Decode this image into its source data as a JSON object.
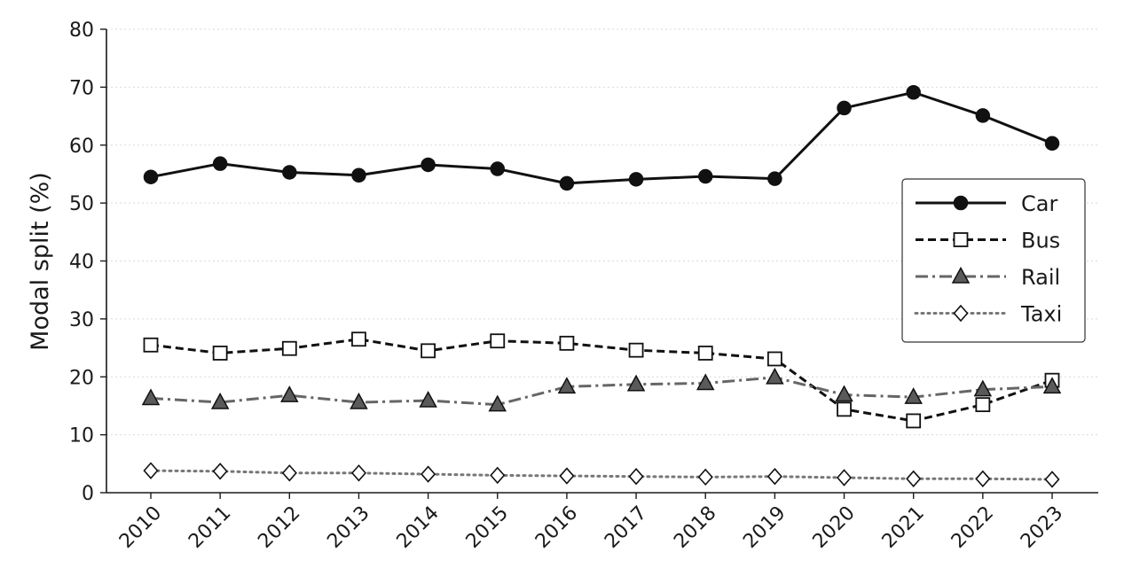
{
  "chart_data": {
    "type": "line",
    "title": "",
    "xlabel": "",
    "ylabel": "Modal split (%)",
    "x": [
      "2010",
      "2011",
      "2012",
      "2013",
      "2014",
      "2015",
      "2016",
      "2017",
      "2018",
      "2019",
      "2020",
      "2021",
      "2022",
      "2023"
    ],
    "ylim": [
      0,
      80
    ],
    "yticks": [
      0,
      10,
      20,
      30,
      40,
      50,
      60,
      70,
      80
    ],
    "grid": "horizontal dotted",
    "legend_position": "right",
    "series": [
      {
        "name": "Car",
        "values": [
          54.5,
          56.8,
          55.3,
          54.8,
          56.6,
          55.9,
          53.4,
          54.1,
          54.6,
          54.2,
          66.4,
          69.1,
          65.1,
          60.3
        ],
        "color": "#111111",
        "linestyle": "solid",
        "marker": "circle",
        "marker_fill": "#111111"
      },
      {
        "name": "Bus",
        "values": [
          25.5,
          24.1,
          24.9,
          26.5,
          24.5,
          26.2,
          25.8,
          24.6,
          24.1,
          23.1,
          14.4,
          12.4,
          15.2,
          19.4
        ],
        "color": "#111111",
        "linestyle": "dashed",
        "marker": "square",
        "marker_fill": "#ffffff"
      },
      {
        "name": "Rail",
        "values": [
          16.3,
          15.6,
          16.8,
          15.6,
          15.9,
          15.2,
          18.3,
          18.7,
          18.9,
          19.9,
          16.9,
          16.5,
          17.8,
          18.3
        ],
        "color": "#666666",
        "linestyle": "dashdot",
        "marker": "triangle",
        "marker_fill": "#5a5a5a"
      },
      {
        "name": "Taxi",
        "values": [
          3.8,
          3.7,
          3.4,
          3.4,
          3.2,
          3.0,
          2.9,
          2.8,
          2.7,
          2.8,
          2.6,
          2.4,
          2.4,
          2.3
        ],
        "color": "#777777",
        "linestyle": "dotted",
        "marker": "diamond",
        "marker_fill": "#ffffff"
      }
    ]
  }
}
